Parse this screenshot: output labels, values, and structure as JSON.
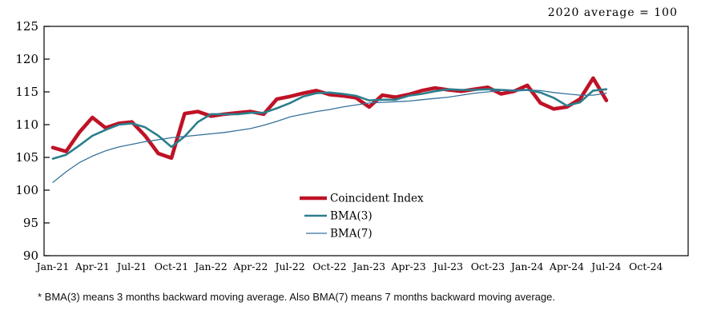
{
  "header": {
    "unit_note": "2020 average = 100"
  },
  "footnote": "* BMA(3) means 3 months backward moving average. Also BMA(7) means 7 months backward moving average.",
  "colors": {
    "coincident": "#bf1226",
    "bma3": "#2b7f8c",
    "bma7": "#36719c",
    "axis": "#000000",
    "background": "#ffffff"
  },
  "chart_data": {
    "type": "line",
    "title": "2020 average = 100",
    "xlabel": "",
    "ylabel": "",
    "ylim": [
      90,
      125
    ],
    "y_ticks": [
      90,
      95,
      100,
      105,
      110,
      115,
      120,
      125
    ],
    "grid": false,
    "legend_position": "inside-bottom-center",
    "x_tick_labels": [
      "Jan-21",
      "Apr-21",
      "Jul-21",
      "Oct-21",
      "Jan-22",
      "Apr-22",
      "Jul-22",
      "Oct-22",
      "Jan-23",
      "Apr-23",
      "Jul-23",
      "Oct-23",
      "Jan-24",
      "Apr-24",
      "Jul-24",
      "Oct-24"
    ],
    "categories": [
      "Jan-21",
      "Feb-21",
      "Mar-21",
      "Apr-21",
      "May-21",
      "Jun-21",
      "Jul-21",
      "Aug-21",
      "Sep-21",
      "Oct-21",
      "Nov-21",
      "Dec-21",
      "Jan-22",
      "Feb-22",
      "Mar-22",
      "Apr-22",
      "May-22",
      "Jun-22",
      "Jul-22",
      "Aug-22",
      "Sep-22",
      "Oct-22",
      "Nov-22",
      "Dec-22",
      "Jan-23",
      "Feb-23",
      "Mar-23",
      "Apr-23",
      "May-23",
      "Jun-23",
      "Jul-23",
      "Aug-23",
      "Sep-23",
      "Oct-23",
      "Nov-23",
      "Dec-23",
      "Jan-24",
      "Feb-24",
      "Mar-24",
      "Apr-24",
      "May-24",
      "Jun-24",
      "Jul-24"
    ],
    "series": [
      {
        "name": "Coincident Index",
        "color": "#bf1226",
        "width": 4.6,
        "values": [
          106.5,
          105.9,
          108.8,
          111.1,
          109.5,
          110.2,
          110.4,
          108.3,
          105.6,
          104.9,
          111.7,
          112.0,
          111.3,
          111.6,
          111.8,
          112.0,
          111.6,
          113.9,
          114.3,
          114.8,
          115.2,
          114.6,
          114.4,
          114.1,
          112.7,
          114.5,
          114.2,
          114.6,
          115.2,
          115.6,
          115.3,
          115.1,
          115.4,
          115.7,
          114.7,
          115.1,
          116.0,
          113.3,
          112.4,
          112.7,
          113.9,
          117.1,
          113.7
        ]
      },
      {
        "name": "BMA(3)",
        "color": "#2b7f8c",
        "width": 2.6,
        "values": [
          104.8,
          105.4,
          106.8,
          108.3,
          109.2,
          110.0,
          110.2,
          109.6,
          108.3,
          106.6,
          108.2,
          110.4,
          111.6,
          111.6,
          111.6,
          111.8,
          111.8,
          112.5,
          113.3,
          114.3,
          114.8,
          114.9,
          114.7,
          114.4,
          113.7,
          113.8,
          113.8,
          114.4,
          114.7,
          115.1,
          115.4,
          115.3,
          115.3,
          115.4,
          115.3,
          115.2,
          115.3,
          114.9,
          114.1,
          112.9,
          113.4,
          115.2,
          115.4
        ]
      },
      {
        "name": "BMA(7)",
        "color": "#36719c",
        "width": 1.3,
        "values": [
          101.2,
          102.8,
          104.2,
          105.2,
          106.0,
          106.6,
          107.0,
          107.4,
          107.7,
          108.0,
          108.2,
          108.4,
          108.6,
          108.8,
          109.1,
          109.4,
          109.9,
          110.5,
          111.2,
          111.6,
          112.0,
          112.3,
          112.7,
          113.0,
          113.3,
          113.4,
          113.5,
          113.6,
          113.8,
          114.0,
          114.2,
          114.5,
          114.8,
          115.0,
          115.2,
          115.3,
          115.3,
          115.2,
          114.9,
          114.7,
          114.5,
          114.5,
          114.8
        ]
      }
    ]
  }
}
